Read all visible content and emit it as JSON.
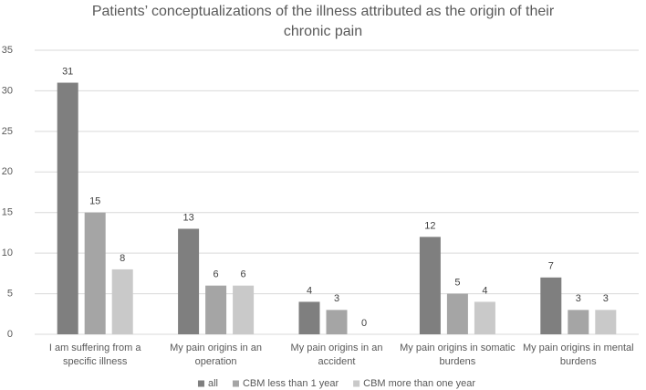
{
  "chart_data": {
    "type": "bar",
    "title": "Patients’ conceptualizations of the illness attributed as the origin of their chronic pain",
    "categories": [
      "I am suffering from a specific illness",
      "My pain origins in an operation",
      "My pain origins in an accident",
      "My pain origins in somatic burdens",
      "My pain origins in mental burdens"
    ],
    "series": [
      {
        "name": "all",
        "color": "#7f7f7f",
        "values": [
          31,
          13,
          4,
          12,
          7
        ]
      },
      {
        "name": "CBM less than 1 year",
        "color": "#a5a5a5",
        "values": [
          15,
          6,
          3,
          5,
          3
        ]
      },
      {
        "name": "CBM more than one year",
        "color": "#c9c9c9",
        "values": [
          8,
          6,
          0,
          4,
          3
        ]
      }
    ],
    "ylim": [
      0,
      35
    ],
    "yticks": [
      0,
      5,
      10,
      15,
      20,
      25,
      30,
      35
    ],
    "grid": true,
    "legend": "bottom"
  }
}
